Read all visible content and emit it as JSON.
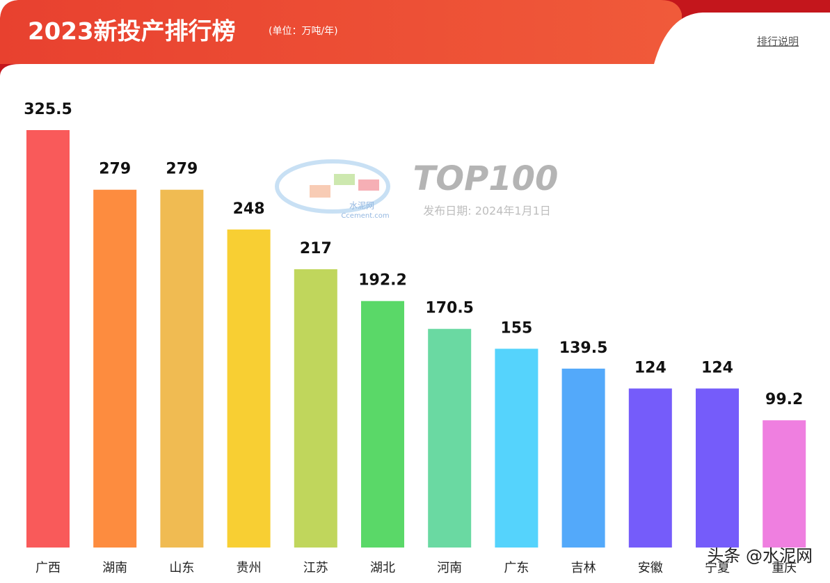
{
  "chart_data": {
    "type": "bar",
    "title": "2023新投产排行榜",
    "subtitle": "(单位：万吨/年)",
    "link": "排行说明",
    "categories": [
      "广西",
      "湖南",
      "山东",
      "贵州",
      "江苏",
      "湖北",
      "河南",
      "广东",
      "吉林",
      "安徽",
      "宁夏",
      "重庆"
    ],
    "values": [
      325.5,
      279,
      279,
      248,
      217,
      192.2,
      170.5,
      155,
      139.5,
      124,
      124,
      99.2
    ],
    "colors": [
      "#f95a5a",
      "#fd8c3f",
      "#f0bb52",
      "#f8cf33",
      "#c0d65c",
      "#5ad868",
      "#6ad9a2",
      "#55d3fc",
      "#53a9fa",
      "#755cfa",
      "#755cfa",
      "#ef7fe0"
    ],
    "watermark": {
      "logo": "水泥网",
      "site": "Ccement.com",
      "brand": "TOP100",
      "date": "发布日期: 2024年1月1日"
    },
    "credit": "头条 @水泥网"
  }
}
